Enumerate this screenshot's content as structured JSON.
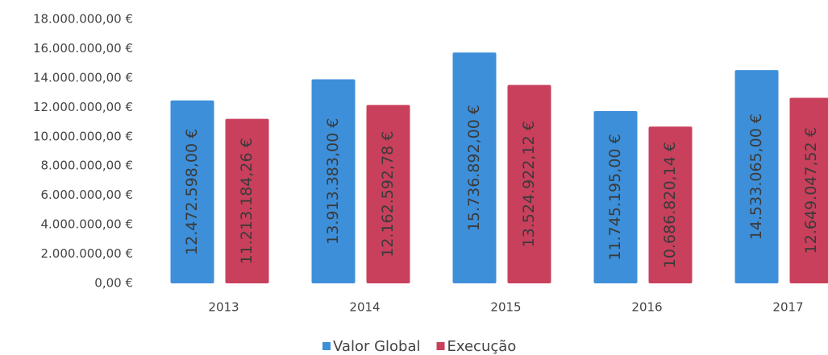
{
  "chart_data": {
    "type": "bar",
    "categories": [
      "2013",
      "2014",
      "2015",
      "2016",
      "2017"
    ],
    "series": [
      {
        "name": "Valor Global",
        "color": "#3d8fd9",
        "values": [
          12472598.0,
          13913383.0,
          15736892.0,
          11745195.0,
          14533065.0
        ],
        "value_labels": [
          "12.472.598,00 €",
          "13.913.383,00 €",
          "15.736.892,00 €",
          "11.745.195,00 €",
          "14.533.065,00 €"
        ]
      },
      {
        "name": "Execução",
        "color": "#c9405c",
        "values": [
          11213184.26,
          12162592.78,
          13524922.12,
          10686820.14,
          12649047.52
        ],
        "value_labels": [
          "11.213.184,26 €",
          "12.162.592,78 €",
          "13.524.922,12 €",
          "10.686.820,14 €",
          "12.649.047,52 €"
        ]
      }
    ],
    "ylim": [
      0,
      18000000
    ],
    "yticks": [
      {
        "value": 0,
        "label": "0,00 €"
      },
      {
        "value": 2000000,
        "label": "2.000.000,00 €"
      },
      {
        "value": 4000000,
        "label": "4.000.000,00 €"
      },
      {
        "value": 6000000,
        "label": "6.000.000,00 €"
      },
      {
        "value": 8000000,
        "label": "8.000.000,00 €"
      },
      {
        "value": 10000000,
        "label": "10.000.000,00 €"
      },
      {
        "value": 12000000,
        "label": "12.000.000,00 €"
      },
      {
        "value": 14000000,
        "label": "14.000.000,00 €"
      },
      {
        "value": 16000000,
        "label": "16.000.000,00 €"
      },
      {
        "value": 18000000,
        "label": "18.000.000,00 €"
      }
    ],
    "grid": false,
    "legend": "bottom"
  }
}
